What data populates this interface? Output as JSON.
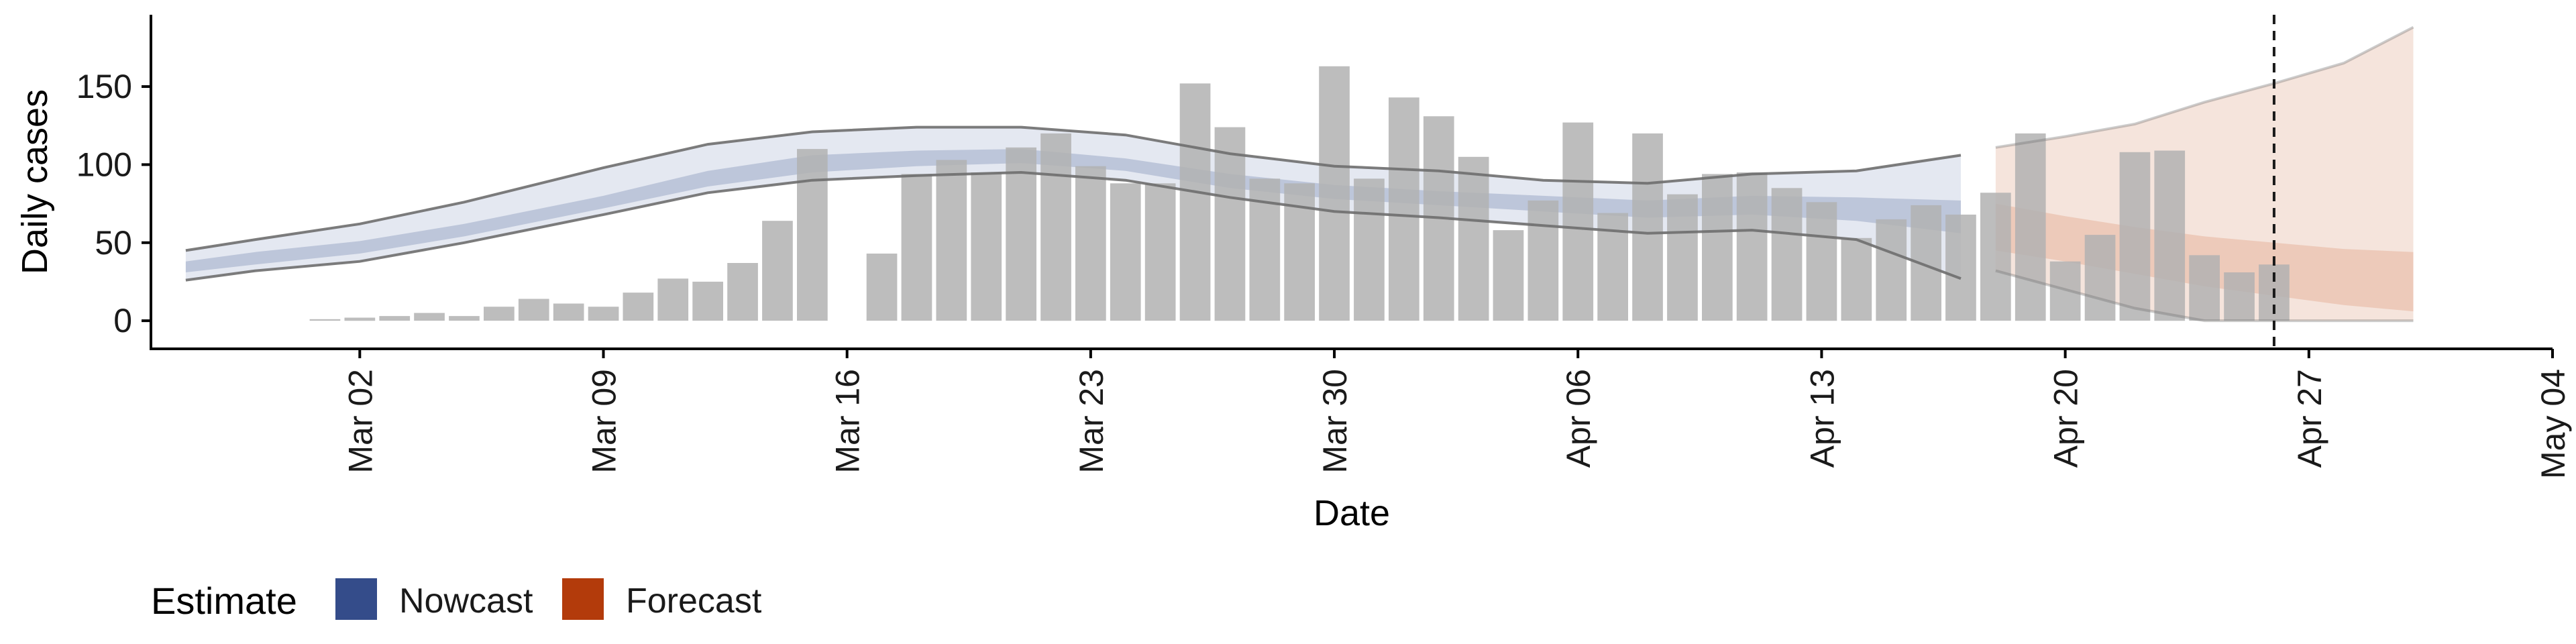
{
  "chart_data": {
    "type": "bar",
    "xlabel": "Date",
    "ylabel": "Daily cases",
    "x_range": [
      "2020-02-25",
      "2020-05-04"
    ],
    "ylim": [
      -18,
      196
    ],
    "x_ticks": [
      {
        "date": "2020-03-02",
        "label": "Mar 02"
      },
      {
        "date": "2020-03-09",
        "label": "Mar 09"
      },
      {
        "date": "2020-03-16",
        "label": "Mar 16"
      },
      {
        "date": "2020-03-23",
        "label": "Mar 23"
      },
      {
        "date": "2020-03-30",
        "label": "Mar 30"
      },
      {
        "date": "2020-04-06",
        "label": "Apr 06"
      },
      {
        "date": "2020-04-13",
        "label": "Apr 13"
      },
      {
        "date": "2020-04-20",
        "label": "Apr 20"
      },
      {
        "date": "2020-04-27",
        "label": "Apr 27"
      },
      {
        "date": "2020-05-04",
        "label": "May 04"
      }
    ],
    "y_ticks": [
      0,
      50,
      100,
      150
    ],
    "grid": false,
    "vline_date": "2020-04-26",
    "bars": {
      "dates": [
        "2020-03-01",
        "2020-03-02",
        "2020-03-03",
        "2020-03-04",
        "2020-03-05",
        "2020-03-06",
        "2020-03-07",
        "2020-03-08",
        "2020-03-09",
        "2020-03-10",
        "2020-03-11",
        "2020-03-12",
        "2020-03-13",
        "2020-03-14",
        "2020-03-15",
        "2020-03-17",
        "2020-03-18",
        "2020-03-19",
        "2020-03-20",
        "2020-03-21",
        "2020-03-22",
        "2020-03-23",
        "2020-03-24",
        "2020-03-25",
        "2020-03-26",
        "2020-03-27",
        "2020-03-28",
        "2020-03-29",
        "2020-03-30",
        "2020-03-31",
        "2020-04-01",
        "2020-04-02",
        "2020-04-03",
        "2020-04-04",
        "2020-04-05",
        "2020-04-06",
        "2020-04-07",
        "2020-04-08",
        "2020-04-09",
        "2020-04-10",
        "2020-04-11",
        "2020-04-12",
        "2020-04-13",
        "2020-04-14",
        "2020-04-15",
        "2020-04-16",
        "2020-04-17",
        "2020-04-18",
        "2020-04-19",
        "2020-04-20",
        "2020-04-21",
        "2020-04-22",
        "2020-04-23",
        "2020-04-24",
        "2020-04-25",
        "2020-04-26"
      ],
      "values": [
        1,
        2,
        3,
        5,
        3,
        9,
        14,
        11,
        9,
        18,
        27,
        25,
        37,
        64,
        110,
        43,
        94,
        103,
        95,
        111,
        120,
        99,
        88,
        88,
        152,
        124,
        91,
        88,
        163,
        91,
        143,
        131,
        105,
        58,
        77,
        127,
        69,
        120,
        81,
        94,
        95,
        85,
        76,
        53,
        65,
        74,
        68,
        82,
        120,
        38,
        55,
        108,
        109,
        42,
        31,
        36
      ]
    },
    "series": [
      {
        "name": "Nowcast",
        "x": [
          "2020-02-26",
          "2020-02-28",
          "2020-03-02",
          "2020-03-05",
          "2020-03-09",
          "2020-03-12",
          "2020-03-15",
          "2020-03-18",
          "2020-03-21",
          "2020-03-24",
          "2020-03-27",
          "2020-03-30",
          "2020-04-02",
          "2020-04-05",
          "2020-04-08",
          "2020-04-11",
          "2020-04-14",
          "2020-04-17"
        ],
        "outer_upper": [
          45,
          52,
          62,
          76,
          98,
          113,
          121,
          124,
          124,
          119,
          107,
          99,
          96,
          90,
          88,
          94,
          96,
          106
        ],
        "outer_lower": [
          26,
          32,
          38,
          50,
          68,
          82,
          90,
          93,
          95,
          90,
          79,
          70,
          66,
          61,
          56,
          58,
          52,
          27
        ],
        "inner_upper": [
          38,
          44,
          51,
          62,
          80,
          96,
          106,
          109,
          110,
          104,
          94,
          87,
          83,
          80,
          77,
          80,
          79,
          77
        ],
        "inner_lower": [
          31,
          36,
          43,
          54,
          72,
          86,
          95,
          99,
          101,
          96,
          85,
          78,
          74,
          70,
          66,
          68,
          64,
          56
        ]
      },
      {
        "name": "Forecast",
        "x": [
          "2020-04-18",
          "2020-04-20",
          "2020-04-22",
          "2020-04-24",
          "2020-04-26",
          "2020-04-28",
          "2020-04-30"
        ],
        "outer_upper": [
          111,
          118,
          126,
          140,
          152,
          165,
          188
        ],
        "outer_lower": [
          32,
          20,
          8,
          0,
          0,
          0,
          0
        ],
        "inner_upper": [
          75,
          67,
          60,
          54,
          50,
          46,
          44
        ],
        "inner_lower": [
          45,
          38,
          30,
          22,
          16,
          10,
          6
        ]
      }
    ],
    "legend": {
      "title": "Estimate",
      "placement": "bottom-left",
      "items": [
        {
          "label": "Nowcast",
          "color": "#344c8a"
        },
        {
          "label": "Forecast",
          "color": "#b33b0b"
        }
      ]
    },
    "colors": {
      "bar": "#b2b2b2",
      "nowcast_outer": "#dde2ee",
      "nowcast_inner": "#b6c0d6",
      "forecast_outer": "#f3ddd3",
      "forecast_inner": "#ebc6b4",
      "band_line": "#6e6e6e",
      "axis": "#000000"
    }
  }
}
